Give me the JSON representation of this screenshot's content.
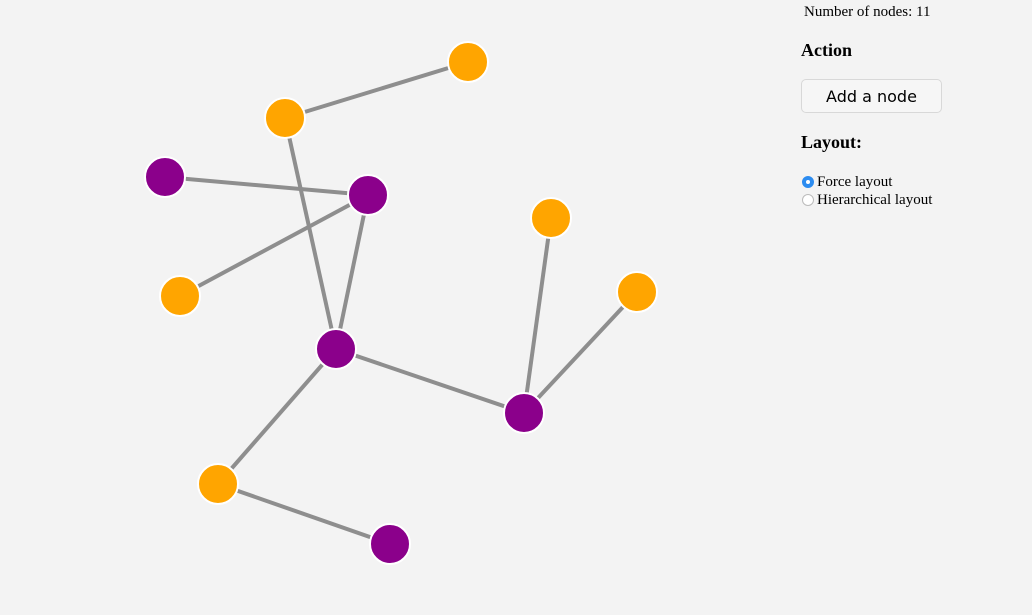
{
  "colors": {
    "orange": "#ffa500",
    "purple": "#8b008b",
    "edge": "#8e8e8e",
    "background": "#f3f3f3"
  },
  "graph": {
    "nodes": [
      {
        "id": 0,
        "color": "orange"
      },
      {
        "id": 1,
        "color": "orange"
      },
      {
        "id": 2,
        "color": "purple"
      },
      {
        "id": 3,
        "color": "purple"
      },
      {
        "id": 4,
        "color": "orange"
      },
      {
        "id": 5,
        "color": "orange"
      },
      {
        "id": 6,
        "color": "orange"
      },
      {
        "id": 7,
        "color": "purple"
      },
      {
        "id": 8,
        "color": "purple"
      },
      {
        "id": 9,
        "color": "orange"
      },
      {
        "id": 10,
        "color": "purple"
      }
    ],
    "edges": [
      [
        0,
        1
      ],
      [
        1,
        7
      ],
      [
        2,
        3
      ],
      [
        3,
        4
      ],
      [
        3,
        7
      ],
      [
        7,
        8
      ],
      [
        5,
        8
      ],
      [
        6,
        8
      ],
      [
        7,
        9
      ],
      [
        9,
        10
      ]
    ]
  },
  "panel": {
    "node_count": "Number of nodes: 11",
    "action_heading": "Action",
    "add_button": "Add a node",
    "layout_heading": "Layout:",
    "layouts": [
      {
        "label": "Force layout",
        "selected": true
      },
      {
        "label": "Hierarchical layout",
        "selected": false
      }
    ]
  }
}
